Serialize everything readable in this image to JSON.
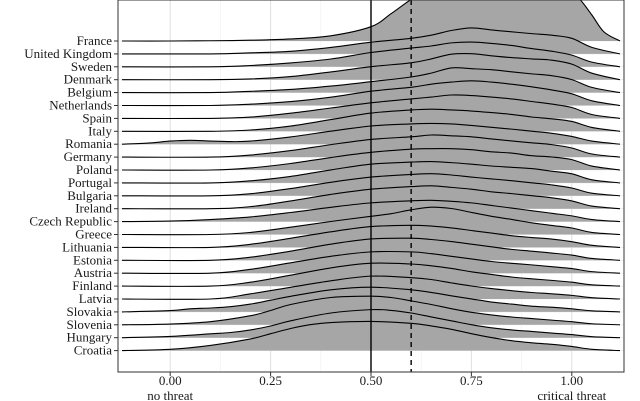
{
  "chart_data": {
    "type": "ridgeline",
    "title": "",
    "xlabel": "",
    "ylabel": "",
    "xlim": [
      -0.13,
      1.13
    ],
    "x_ticks": [
      {
        "value": 0.0,
        "label": "0.00",
        "sublabel": "no threat"
      },
      {
        "value": 0.25,
        "label": "0.25",
        "sublabel": ""
      },
      {
        "value": 0.5,
        "label": "0.50",
        "sublabel": ""
      },
      {
        "value": 0.75,
        "label": "0.75",
        "sublabel": ""
      },
      {
        "value": 1.0,
        "label": "1.00",
        "sublabel": "critical threat"
      }
    ],
    "grid": true,
    "fill_color": "#a6a6a6",
    "reference_lines": [
      {
        "value": 0.5,
        "style": "solid"
      },
      {
        "value": 0.6,
        "style": "dashed"
      }
    ],
    "categories": [
      "France",
      "United Kingdom",
      "Sweden",
      "Denmark",
      "Belgium",
      "Netherlands",
      "Spain",
      "Italy",
      "Romania",
      "Germany",
      "Poland",
      "Portugal",
      "Bulgaria",
      "Ireland",
      "Czech Republic",
      "Greece",
      "Lithuania",
      "Estonia",
      "Austria",
      "Finland",
      "Latvia",
      "Slovakia",
      "Slovenia",
      "Hungary",
      "Croatia"
    ],
    "series": [
      {
        "name": "France",
        "x": [
          -0.12,
          0.0,
          0.1,
          0.2,
          0.3,
          0.4,
          0.5,
          0.55,
          0.6,
          0.65,
          0.7,
          0.75,
          0.8,
          0.85,
          0.9,
          0.95,
          0.98,
          1.0,
          1.02,
          1.05,
          1.08,
          1.12
        ],
        "density": [
          0.0,
          0.0,
          0.01,
          0.03,
          0.08,
          0.2,
          0.55,
          1.05,
          1.6,
          2.05,
          2.35,
          2.45,
          2.4,
          2.25,
          2.05,
          1.85,
          1.8,
          1.75,
          1.6,
          1.0,
          0.35,
          0.0
        ]
      },
      {
        "name": "United Kingdom",
        "x": [
          -0.12,
          0.1,
          0.2,
          0.3,
          0.4,
          0.5,
          0.6,
          0.65,
          0.7,
          0.75,
          0.8,
          0.85,
          0.9,
          0.95,
          1.0,
          1.05,
          1.12
        ],
        "density": [
          0.0,
          0.0,
          0.04,
          0.1,
          0.25,
          0.45,
          0.6,
          0.72,
          0.9,
          1.0,
          0.92,
          0.85,
          0.78,
          0.72,
          0.6,
          0.25,
          0.0
        ]
      },
      {
        "name": "Sweden",
        "x": [
          -0.12,
          0.1,
          0.2,
          0.3,
          0.4,
          0.5,
          0.6,
          0.65,
          0.7,
          0.75,
          0.8,
          0.85,
          0.9,
          0.95,
          1.0,
          1.05,
          1.12
        ],
        "density": [
          0.0,
          0.0,
          0.05,
          0.15,
          0.3,
          0.55,
          0.72,
          0.8,
          0.92,
          0.95,
          0.9,
          0.82,
          0.7,
          0.6,
          0.45,
          0.18,
          0.0
        ]
      },
      {
        "name": "Denmark",
        "x": [
          -0.12,
          0.1,
          0.2,
          0.3,
          0.4,
          0.5,
          0.6,
          0.65,
          0.7,
          0.75,
          0.8,
          0.85,
          0.9,
          0.95,
          1.0,
          1.05,
          1.12
        ],
        "density": [
          0.0,
          0.0,
          0.03,
          0.12,
          0.3,
          0.5,
          0.65,
          0.8,
          0.98,
          1.0,
          0.92,
          0.85,
          0.8,
          0.75,
          0.6,
          0.25,
          0.0
        ]
      },
      {
        "name": "Belgium",
        "x": [
          -0.12,
          0.1,
          0.2,
          0.3,
          0.4,
          0.5,
          0.6,
          0.65,
          0.7,
          0.75,
          0.8,
          0.85,
          0.9,
          0.95,
          1.0,
          1.05,
          1.12
        ],
        "density": [
          0.0,
          0.0,
          0.05,
          0.12,
          0.25,
          0.42,
          0.6,
          0.75,
          0.95,
          0.92,
          0.88,
          0.8,
          0.72,
          0.65,
          0.5,
          0.2,
          0.0
        ]
      },
      {
        "name": "Netherlands",
        "x": [
          -0.12,
          0.1,
          0.2,
          0.3,
          0.4,
          0.5,
          0.6,
          0.65,
          0.7,
          0.75,
          0.8,
          0.85,
          0.9,
          0.95,
          1.0,
          1.05,
          1.12
        ],
        "density": [
          0.0,
          0.0,
          0.05,
          0.15,
          0.32,
          0.55,
          0.7,
          0.82,
          0.9,
          0.95,
          0.9,
          0.82,
          0.72,
          0.6,
          0.45,
          0.18,
          0.0
        ]
      },
      {
        "name": "Spain",
        "x": [
          -0.12,
          0.1,
          0.2,
          0.3,
          0.4,
          0.5,
          0.6,
          0.65,
          0.7,
          0.75,
          0.8,
          0.85,
          0.9,
          0.95,
          1.0,
          1.05,
          1.12
        ],
        "density": [
          0.0,
          0.0,
          0.05,
          0.2,
          0.4,
          0.6,
          0.75,
          0.82,
          0.9,
          0.88,
          0.82,
          0.75,
          0.65,
          0.55,
          0.42,
          0.15,
          0.0
        ]
      },
      {
        "name": "Italy",
        "x": [
          -0.12,
          0.1,
          0.2,
          0.3,
          0.4,
          0.5,
          0.6,
          0.65,
          0.7,
          0.75,
          0.8,
          0.85,
          0.9,
          0.95,
          1.0,
          1.05,
          1.12
        ],
        "density": [
          0.0,
          0.0,
          0.05,
          0.2,
          0.45,
          0.7,
          0.82,
          0.85,
          0.82,
          0.78,
          0.72,
          0.65,
          0.55,
          0.48,
          0.38,
          0.15,
          0.0
        ]
      },
      {
        "name": "Romania",
        "x": [
          -0.12,
          -0.05,
          0.0,
          0.05,
          0.1,
          0.15,
          0.2,
          0.3,
          0.4,
          0.5,
          0.6,
          0.65,
          0.7,
          0.75,
          0.8,
          0.85,
          0.9,
          0.95,
          1.0,
          1.05,
          1.12
        ],
        "density": [
          0.0,
          0.05,
          0.12,
          0.15,
          0.12,
          0.1,
          0.12,
          0.28,
          0.5,
          0.7,
          0.78,
          0.8,
          0.78,
          0.72,
          0.65,
          0.58,
          0.5,
          0.42,
          0.3,
          0.12,
          0.0
        ]
      },
      {
        "name": "Germany",
        "x": [
          -0.12,
          0.1,
          0.2,
          0.3,
          0.4,
          0.5,
          0.6,
          0.65,
          0.7,
          0.75,
          0.8,
          0.85,
          0.9,
          0.95,
          1.0,
          1.05,
          1.12
        ],
        "density": [
          0.0,
          0.0,
          0.08,
          0.25,
          0.48,
          0.68,
          0.78,
          0.85,
          0.82,
          0.78,
          0.7,
          0.62,
          0.55,
          0.48,
          0.35,
          0.12,
          0.0
        ]
      },
      {
        "name": "Poland",
        "x": [
          -0.12,
          0.1,
          0.2,
          0.3,
          0.4,
          0.5,
          0.6,
          0.65,
          0.7,
          0.75,
          0.8,
          0.85,
          0.9,
          0.95,
          1.0,
          1.05,
          1.12
        ],
        "density": [
          0.0,
          0.0,
          0.08,
          0.25,
          0.48,
          0.68,
          0.8,
          0.82,
          0.82,
          0.78,
          0.7,
          0.65,
          0.55,
          0.5,
          0.4,
          0.15,
          0.0
        ]
      },
      {
        "name": "Portugal",
        "x": [
          -0.12,
          0.1,
          0.2,
          0.3,
          0.4,
          0.5,
          0.6,
          0.65,
          0.7,
          0.75,
          0.8,
          0.85,
          0.9,
          0.95,
          1.0,
          1.05,
          1.12
        ],
        "density": [
          0.0,
          0.0,
          0.08,
          0.25,
          0.5,
          0.72,
          0.8,
          0.82,
          0.78,
          0.72,
          0.65,
          0.6,
          0.55,
          0.45,
          0.35,
          0.12,
          0.0
        ]
      },
      {
        "name": "Bulgaria",
        "x": [
          -0.12,
          0.1,
          0.2,
          0.3,
          0.4,
          0.5,
          0.6,
          0.65,
          0.7,
          0.75,
          0.8,
          0.85,
          0.9,
          0.95,
          1.0,
          1.05,
          1.12
        ],
        "density": [
          0.0,
          0.0,
          0.08,
          0.28,
          0.52,
          0.72,
          0.82,
          0.85,
          0.8,
          0.72,
          0.65,
          0.58,
          0.5,
          0.42,
          0.3,
          0.1,
          0.0
        ]
      },
      {
        "name": "Ireland",
        "x": [
          -0.12,
          0.1,
          0.2,
          0.3,
          0.4,
          0.5,
          0.6,
          0.65,
          0.7,
          0.75,
          0.8,
          0.85,
          0.9,
          0.95,
          1.0,
          1.05,
          1.12
        ],
        "density": [
          0.0,
          0.0,
          0.08,
          0.3,
          0.55,
          0.75,
          0.85,
          0.88,
          0.82,
          0.75,
          0.65,
          0.58,
          0.5,
          0.42,
          0.3,
          0.1,
          0.0
        ]
      },
      {
        "name": "Czech Republic",
        "x": [
          -0.12,
          0.0,
          0.1,
          0.2,
          0.3,
          0.4,
          0.5,
          0.6,
          0.65,
          0.7,
          0.75,
          0.8,
          0.85,
          0.9,
          0.95,
          1.0,
          1.05,
          1.12
        ],
        "density": [
          0.0,
          0.02,
          0.08,
          0.18,
          0.35,
          0.55,
          0.72,
          0.8,
          0.82,
          0.78,
          0.72,
          0.62,
          0.52,
          0.42,
          0.32,
          0.22,
          0.08,
          0.0
        ]
      },
      {
        "name": "Greece",
        "x": [
          -0.12,
          0.1,
          0.2,
          0.3,
          0.4,
          0.5,
          0.55,
          0.6,
          0.65,
          0.7,
          0.75,
          0.8,
          0.85,
          0.9,
          0.95,
          1.0,
          1.05,
          1.12
        ],
        "density": [
          0.0,
          0.0,
          0.08,
          0.28,
          0.5,
          0.7,
          0.8,
          0.95,
          1.05,
          1.0,
          0.85,
          0.7,
          0.58,
          0.45,
          0.35,
          0.25,
          0.08,
          0.0
        ]
      },
      {
        "name": "Lithuania",
        "x": [
          -0.12,
          0.1,
          0.2,
          0.3,
          0.4,
          0.5,
          0.6,
          0.65,
          0.7,
          0.75,
          0.8,
          0.85,
          0.9,
          0.95,
          1.0,
          1.05,
          1.12
        ],
        "density": [
          0.0,
          0.0,
          0.12,
          0.35,
          0.6,
          0.8,
          0.85,
          0.82,
          0.75,
          0.65,
          0.55,
          0.45,
          0.38,
          0.32,
          0.22,
          0.08,
          0.0
        ]
      },
      {
        "name": "Estonia",
        "x": [
          -0.12,
          0.1,
          0.2,
          0.3,
          0.4,
          0.5,
          0.6,
          0.65,
          0.7,
          0.75,
          0.8,
          0.85,
          0.9,
          0.95,
          1.0,
          1.05,
          1.12
        ],
        "density": [
          0.0,
          0.0,
          0.12,
          0.35,
          0.62,
          0.82,
          0.85,
          0.8,
          0.72,
          0.62,
          0.52,
          0.42,
          0.35,
          0.28,
          0.2,
          0.07,
          0.0
        ]
      },
      {
        "name": "Austria",
        "x": [
          -0.12,
          0.1,
          0.2,
          0.3,
          0.4,
          0.5,
          0.6,
          0.65,
          0.7,
          0.75,
          0.8,
          0.85,
          0.9,
          0.95,
          1.0,
          1.05,
          1.12
        ],
        "density": [
          0.0,
          0.0,
          0.15,
          0.4,
          0.65,
          0.82,
          0.82,
          0.75,
          0.65,
          0.55,
          0.45,
          0.38,
          0.32,
          0.25,
          0.18,
          0.06,
          0.0
        ]
      },
      {
        "name": "Finland",
        "x": [
          -0.12,
          0.1,
          0.2,
          0.3,
          0.4,
          0.5,
          0.6,
          0.65,
          0.7,
          0.75,
          0.8,
          0.85,
          0.9,
          0.95,
          1.0,
          1.05,
          1.12
        ],
        "density": [
          0.0,
          0.0,
          0.15,
          0.42,
          0.7,
          0.88,
          0.85,
          0.78,
          0.68,
          0.55,
          0.45,
          0.35,
          0.28,
          0.22,
          0.15,
          0.05,
          0.0
        ]
      },
      {
        "name": "Latvia",
        "x": [
          -0.12,
          0.1,
          0.2,
          0.3,
          0.4,
          0.5,
          0.6,
          0.65,
          0.7,
          0.75,
          0.8,
          0.85,
          0.9,
          0.95,
          1.0,
          1.05,
          1.12
        ],
        "density": [
          0.0,
          0.0,
          0.2,
          0.45,
          0.7,
          0.88,
          0.82,
          0.75,
          0.62,
          0.5,
          0.4,
          0.32,
          0.25,
          0.2,
          0.14,
          0.05,
          0.0
        ]
      },
      {
        "name": "Slovakia",
        "x": [
          -0.12,
          0.0,
          0.05,
          0.1,
          0.15,
          0.2,
          0.25,
          0.3,
          0.4,
          0.5,
          0.6,
          0.65,
          0.7,
          0.75,
          0.8,
          0.85,
          0.9,
          0.95,
          1.0,
          1.05,
          1.12
        ],
        "density": [
          0.0,
          0.05,
          0.12,
          0.15,
          0.2,
          0.3,
          0.45,
          0.6,
          0.85,
          0.95,
          0.85,
          0.75,
          0.62,
          0.5,
          0.38,
          0.3,
          0.22,
          0.18,
          0.12,
          0.04,
          0.0
        ]
      },
      {
        "name": "Slovenia",
        "x": [
          -0.12,
          0.0,
          0.1,
          0.2,
          0.25,
          0.3,
          0.4,
          0.5,
          0.55,
          0.6,
          0.65,
          0.7,
          0.75,
          0.8,
          0.85,
          0.9,
          0.95,
          1.0,
          1.05,
          1.12
        ],
        "density": [
          0.0,
          0.03,
          0.12,
          0.35,
          0.55,
          0.78,
          1.05,
          1.1,
          1.05,
          0.92,
          0.78,
          0.62,
          0.48,
          0.38,
          0.3,
          0.24,
          0.18,
          0.12,
          0.04,
          0.0
        ]
      },
      {
        "name": "Hungary",
        "x": [
          -0.12,
          0.0,
          0.1,
          0.15,
          0.2,
          0.25,
          0.3,
          0.4,
          0.5,
          0.55,
          0.6,
          0.65,
          0.7,
          0.75,
          0.8,
          0.85,
          0.9,
          0.95,
          1.0,
          1.05,
          1.12
        ],
        "density": [
          0.0,
          0.05,
          0.15,
          0.2,
          0.3,
          0.45,
          0.65,
          0.95,
          1.08,
          1.05,
          0.95,
          0.8,
          0.65,
          0.5,
          0.38,
          0.3,
          0.24,
          0.18,
          0.12,
          0.04,
          0.0
        ]
      },
      {
        "name": "Croatia",
        "x": [
          -0.12,
          0.0,
          0.1,
          0.2,
          0.25,
          0.3,
          0.35,
          0.4,
          0.5,
          0.6,
          0.65,
          0.7,
          0.75,
          0.8,
          0.85,
          0.9,
          0.95,
          1.0,
          1.05,
          1.12
        ],
        "density": [
          0.0,
          0.05,
          0.2,
          0.45,
          0.65,
          0.85,
          1.0,
          1.08,
          1.12,
          1.05,
          0.95,
          0.82,
          0.65,
          0.5,
          0.38,
          0.3,
          0.24,
          0.16,
          0.05,
          0.0
        ]
      }
    ]
  }
}
